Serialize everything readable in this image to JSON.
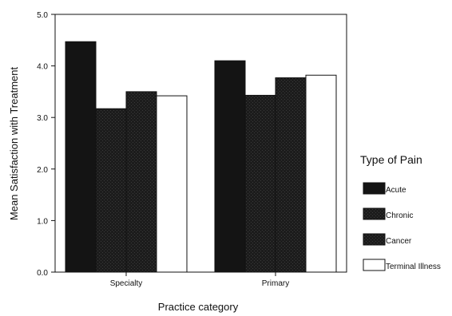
{
  "chart_data": {
    "type": "bar",
    "title": "",
    "xlabel": "Practice category",
    "ylabel": "Mean Satisfaction with Treatment",
    "categories": [
      "Specialty",
      "Primary"
    ],
    "ylim": [
      0,
      5
    ],
    "yticks": [
      "0.0",
      "1.0",
      "2.0",
      "3.0",
      "4.0",
      "5.0"
    ],
    "grid": false,
    "legend_title": "Type of Pain",
    "legend_position": "right",
    "series": [
      {
        "name": "Acute",
        "values": [
          4.47,
          4.1
        ],
        "color": "#141414"
      },
      {
        "name": "Chronic",
        "values": [
          3.17,
          3.43
        ],
        "color": "#2a2a2a"
      },
      {
        "name": "Cancer",
        "values": [
          3.5,
          3.77
        ],
        "color": "#222222"
      },
      {
        "name": "Terminal Illness",
        "values": [
          3.42,
          3.82
        ],
        "color": "#ffffff"
      }
    ]
  }
}
